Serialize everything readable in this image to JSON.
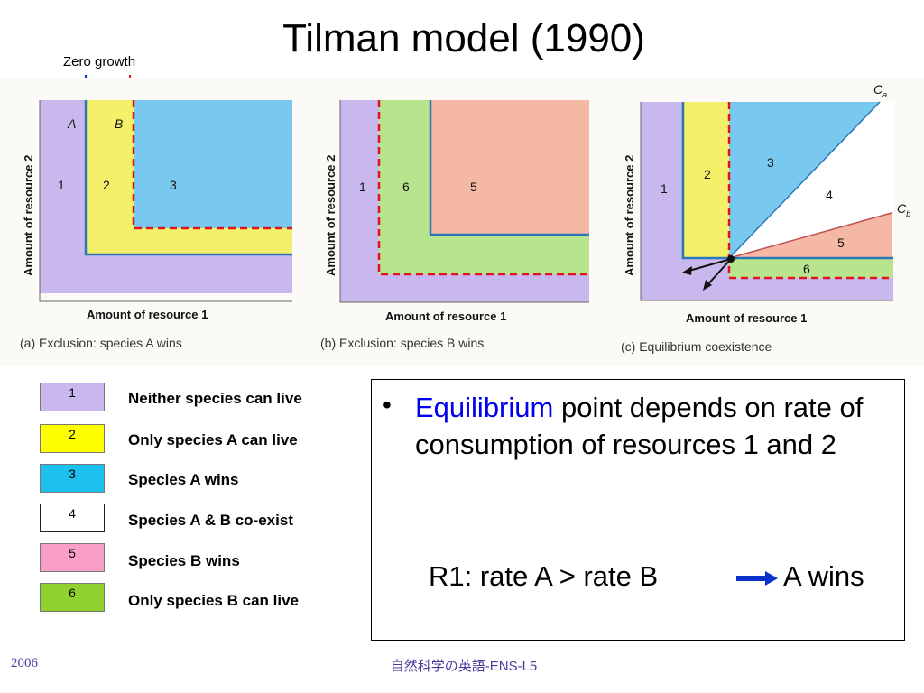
{
  "title": "Tilman model (1990)",
  "annotation": {
    "zero_growth": "Zero growth"
  },
  "colors": {
    "neither": "#c8b8ee",
    "only_a": "#f5f06a",
    "a_wins": "#79c8ef",
    "coexist": "#ffffff",
    "b_wins": "#f5b8a4",
    "only_b": "#b9e48e",
    "arrow_blue": "#0b33cc",
    "arrow_red": "#e0141c"
  },
  "panels": [
    {
      "caption": "(a) Exclusion: species A wins",
      "xlabel": "Amount of resource 1",
      "ylabel": "Amount of resource 2",
      "labels": [
        "A",
        "B",
        "1",
        "2",
        "3"
      ]
    },
    {
      "caption": "(b) Exclusion: species B wins",
      "xlabel": "Amount of resource 1",
      "ylabel": "Amount of resource 2",
      "labels": [
        "1",
        "6",
        "5"
      ]
    },
    {
      "caption": "(c) Equilibrium coexistence",
      "xlabel": "Amount of resource 1",
      "ylabel": "Amount of resource 2",
      "labels": [
        "1",
        "2",
        "3",
        "4",
        "5",
        "6"
      ],
      "line_labels": [
        "C",
        "a",
        "C",
        "b"
      ]
    }
  ],
  "legend": [
    {
      "num": "1",
      "label": "Neither species can live",
      "color": "#c8b8ee"
    },
    {
      "num": "2",
      "label": "Only species A can live",
      "color": "#ffff00"
    },
    {
      "num": "3",
      "label": "Species A wins",
      "color": "#1ec1ee"
    },
    {
      "num": "4",
      "label": "Species A & B co-exist",
      "color": "#ffffff"
    },
    {
      "num": "5",
      "label": "Species B wins",
      "color": "#f89ec8"
    },
    {
      "num": "6",
      "label": "Only species B can live",
      "color": "#8fd22f"
    }
  ],
  "textbox": {
    "bullet": "•",
    "highlight": "Equilibrium",
    "rest": " point depends on rate of consumption of resources 1 and 2",
    "rule_left": "R1: rate A > rate B",
    "rule_right": "A wins"
  },
  "footer": {
    "left": "2006",
    "center": "自然科学の英語-ENS-L5"
  }
}
